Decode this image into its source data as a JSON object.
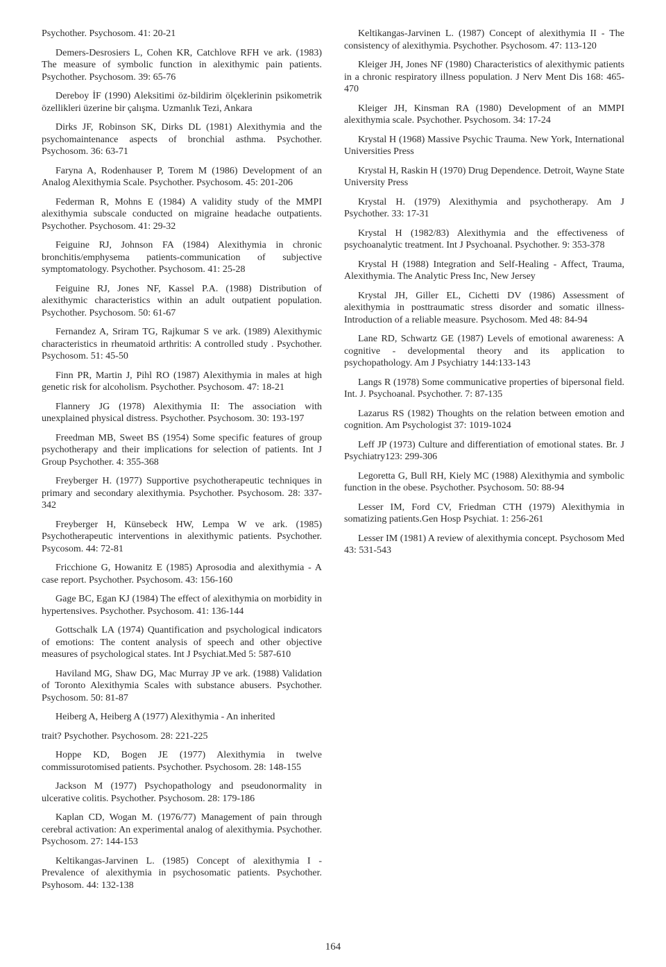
{
  "page_number": "164",
  "refs": [
    "Psychother. Psychosom. 41: 20-21",
    "Demers-Desrosiers L, Cohen KR, Catchlove RFH ve ark. (1983) The measure of symbolic function in alexithymic pain patients. Psychother. Psychosom. 39: 65-76",
    "Dereboy İF (1990) Aleksitimi öz-bildirim ölçeklerinin psikometrik özellikleri üzerine bir çalışma. Uzmanlık Tezi, Ankara",
    "Dirks JF, Robinson SK, Dirks DL (1981) Alexithymia and the psychomaintenance aspects of bronchial asthma. Psychother. Psychosom. 36: 63-71",
    "Faryna A, Rodenhauser P, Torem M (1986) Development of an Analog Alexithymia Scale. Psychother. Psychosom. 45: 201-206",
    "Federman R, Mohns E (1984) A validity study of the MMPI alexithymia subscale conducted on migraine headache outpatients. Psychother. Psychosom. 41: 29-32",
    "Feiguine RJ, Johnson FA (1984) Alexithymia in chronic bronchitis/emphysema patients-communication of subjective symptomatology. Psychother. Psychosom. 41: 25-28",
    "Feiguine RJ, Jones NF, Kassel P.A. (1988) Distribution of alexithymic characteristics within an adult outpatient population. Psychother. Psychosom. 50: 61-67",
    "Fernandez A, Sriram TG, Rajkumar S ve ark. (1989) Alexithymic characteristics in rheumatoid arthritis: A controlled study . Psychother. Psychosom.   51: 45-50",
    "Finn PR, Martin J, Pihl RO (1987) Alexithymia in males at high genetic risk for alcoholism. Psychother. Psychosom. 47: 18-21",
    "Flannery JG (1978) Alexithymia II: The association with unexplained physical distress. Psychother. Psychosom. 30: 193-197",
    "Freedman MB, Sweet BS (1954) Some specific features of group psychotherapy and their implications for selection of patients. Int J Group Psychother. 4: 355-368",
    "Freyberger H. (1977) Supportive psychotherapeutic techniques in primary and secondary alexithymia. Psychother. Psychosom.   28: 337-342",
    "Freyberger H, Künsebeck HW, Lempa W ve ark. (1985) Psychotherapeutic interventions in alexithymic patients. Psychother. Psycosom. 44: 72-81",
    "Fricchione G, Howanitz E (1985) Aprosodia and alexithymia - A case report. Psychother. Psychosom. 43: 156-160",
    "Gage BC, Egan KJ (1984) The effect of alexithymia on morbidity in hypertensives. Psychother. Psychosom.   41: 136-144",
    "Gottschalk LA (1974) Quantification and psychological indicators of emotions: The content analysis of speech and other objective measures of psychological states. Int J Psychiat.Med 5: 587-610",
    "Haviland MG, Shaw DG, Mac Murray JP ve ark. (1988) Validation of Toronto Alexithymia Scales with substance abusers. Psychother. Psychosom. 50: 81-87",
    "Heiberg A, Heiberg A (1977) Alexithymia - An inherited",
    "trait?   Psychother. Psychosom. 28: 221-225",
    "Hoppe KD, Bogen JE (1977) Alexithymia in twelve commissurotomised patients. Psychother. Psychosom.   28: 148-155",
    "Jackson M (1977) Psychopathology and pseudonormality in ulcerative colitis. Psychother. Psychosom. 28: 179-186",
    "Kaplan CD, Wogan M. (1976/77) Management of pain through cerebral activation: An experimental analog of alexithymia. Psychother. Psychosom.   27: 144-153",
    "Keltikangas-Jarvinen L. (1985) Concept of alexithymia I - Prevalence of alexithymia in psychosomatic patients. Psychother. Psyhosom. 44: 132-138",
    "Keltikangas-Jarvinen L. (1987) Concept of alexithymia II - The consistency of alexithymia.   Psychother. Psychosom.   47: 113-120",
    "Kleiger JH, Jones NF (1980)   Characteristics of alexithymic patients in a chronic respiratory illness population.   J Nerv Ment Dis   168: 465-470",
    "Kleiger JH, Kinsman RA (1980)   Development of an MMPI alexithymia scale.   Psychother. Psychosom.   34: 17-24",
    "Krystal H (1968) Massive Psychic Trauma. New York,   International Universities Press",
    "Krystal H, Raskin H (1970) Drug Dependence. Detroit, Wayne State University Press",
    "Krystal H. (1979)      Alexithymia and psychotherapy. Am J Psychother.      33: 17-31",
    "Krystal H (1982/83) Alexithymia and the effectiveness of psychoanalytic treatment. Int J Psychoanal. Psychother.   9: 353-378",
    "Krystal H (1988) Integration and Self-Healing   - Affect, Trauma, Alexithymia. The Analytic Press Inc, New Jersey",
    "Krystal JH, Giller EL, Cichetti DV (1986) Assessment of alexithymia in posttraumatic stress disorder and somatic illness-Introduction of a reliable measure. Psychosom. Med 48: 84-94",
    "Lane RD, Schwartz GE (1987) Levels of emotional awareness: A cognitive - developmental theory and its application to psychopathology. Am J Psychiatry 144:133-143",
    "Langs R (1978)      Some communicative properties of bipersonal field.   Int. J. Psychoanal. Psychother. 7: 87-135",
    "Lazarus RS (1982) Thoughts on the relation between emotion and cognition. Am Psychologist 37: 1019-1024",
    "Leff JP (1973) Culture and differentiation of emotional states. Br. J Psychiatry123: 299-306",
    "Legoretta G, Bull RH, Kiely MC (1988) Alexithymia and symbolic function in the obese. Psychother. Psychosom.   50: 88-94",
    "Lesser IM, Ford CV, Friedman CTH (1979) Alexithymia in somatizing patients.Gen Hosp Psychiat.   1: 256-261",
    "Lesser IM (1981) A review of alexithymia concept. Psychosom Med 43: 531-543"
  ]
}
